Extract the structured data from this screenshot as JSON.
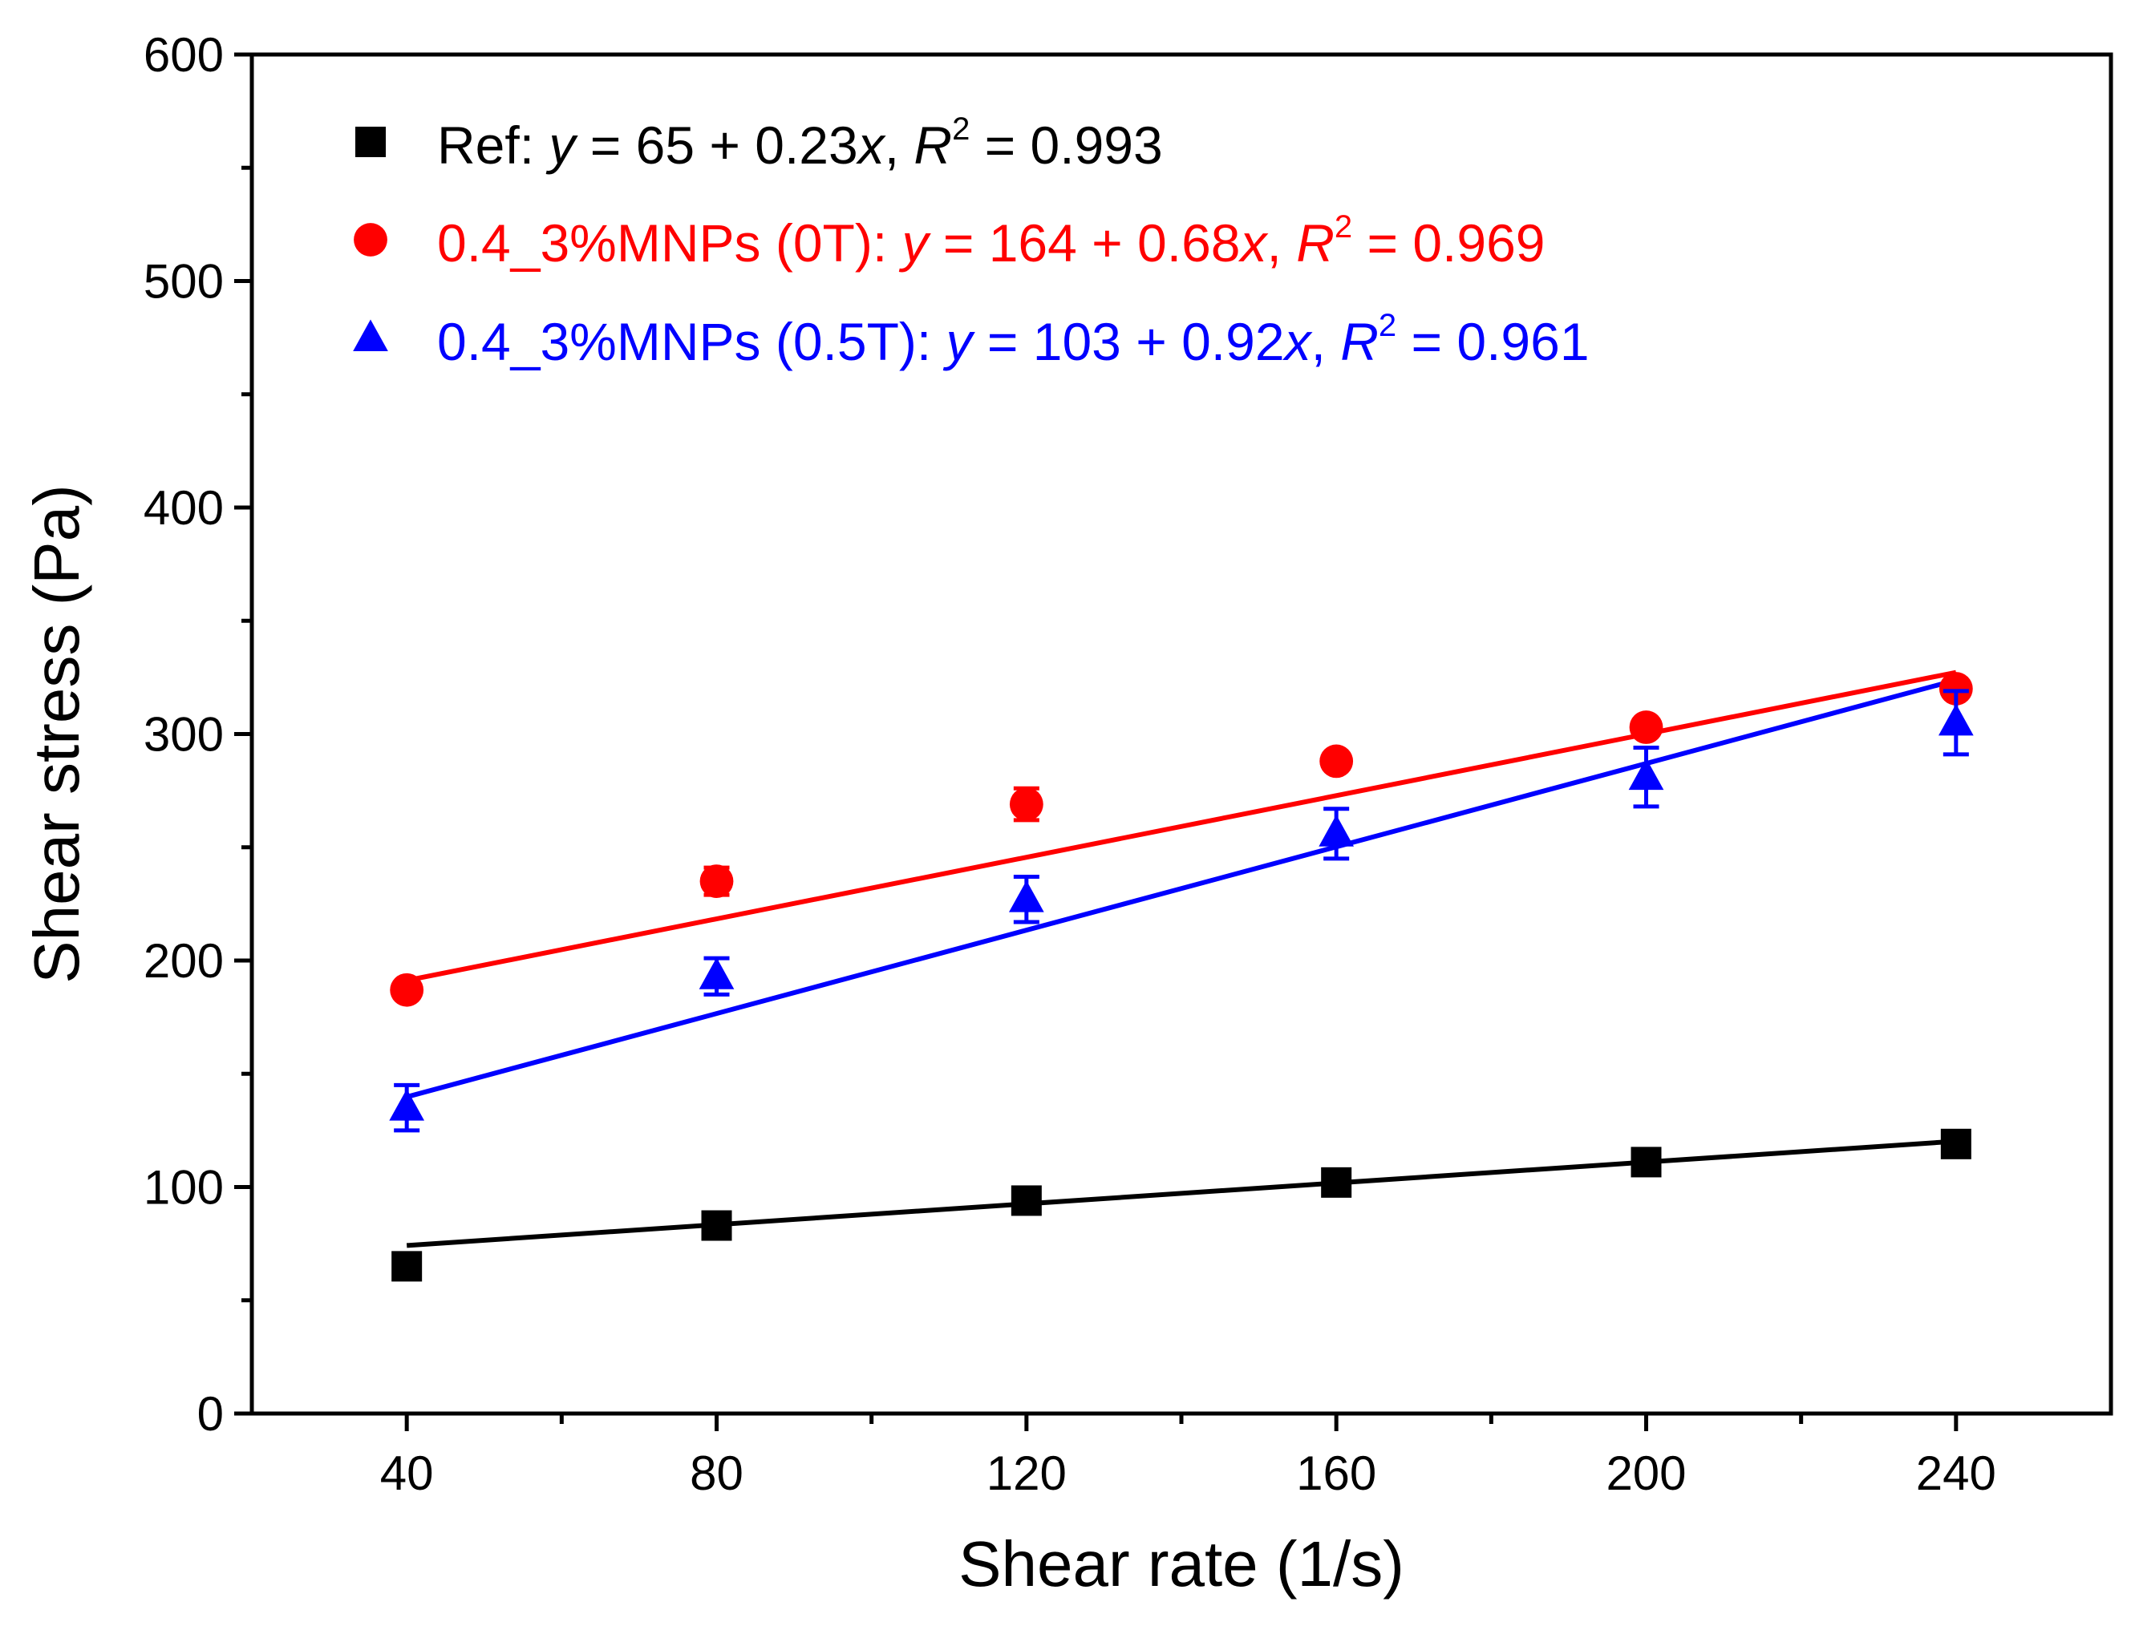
{
  "chart_data": {
    "type": "scatter",
    "title": "",
    "xlabel": "Shear rate (1/s)",
    "ylabel": "Shear stress (Pa)",
    "xlim": [
      20,
      260
    ],
    "ylim": [
      0,
      600
    ],
    "xticks": [
      40,
      80,
      120,
      160,
      200,
      240
    ],
    "yticks": [
      0,
      100,
      200,
      300,
      400,
      500,
      600
    ],
    "grid": false,
    "legend_position": "top-left",
    "series": [
      {
        "name": "Ref",
        "color": "#000000",
        "marker": "square",
        "x": [
          40,
          80,
          120,
          160,
          200,
          240
        ],
        "y": [
          65,
          83,
          94,
          102,
          111,
          119
        ],
        "error": [
          4,
          3,
          3,
          3,
          3,
          3
        ],
        "fit": {
          "intercept": 65,
          "slope": 0.23,
          "r2": "0.993"
        },
        "legend": {
          "label": "Ref: ",
          "eq_y": "y",
          "eq_mid": " = 65 + 0.23",
          "eq_x": "x",
          "eq_comma": ", ",
          "r": "R",
          "r_sup": "2",
          "r_val": " = 0.993"
        }
      },
      {
        "name": "0.4_3%MNPs (0T)",
        "color": "#ff0000",
        "marker": "circle",
        "x": [
          40,
          80,
          120,
          160,
          200,
          240
        ],
        "y": [
          187,
          235,
          269,
          288,
          303,
          320
        ],
        "error": [
          3,
          6,
          7,
          3,
          3,
          3
        ],
        "fit": {
          "intercept": 164,
          "slope": 0.68,
          "r2": "0.969"
        },
        "legend": {
          "label": "0.4_3%MNPs (0T): ",
          "eq_y": "y",
          "eq_mid": " = 164 + 0.68",
          "eq_x": "x",
          "eq_comma": ", ",
          "r": "R",
          "r_sup": "2",
          "r_val": " = 0.969"
        }
      },
      {
        "name": "0.4_3%MNPs (0.5T)",
        "color": "#0000ff",
        "marker": "triangle",
        "x": [
          40,
          80,
          120,
          160,
          200,
          240
        ],
        "y": [
          135,
          193,
          227,
          256,
          281,
          305
        ],
        "error": [
          10,
          8,
          10,
          11,
          13,
          14
        ],
        "fit": {
          "intercept": 103,
          "slope": 0.92,
          "r2": "0.961"
        },
        "legend": {
          "label": "0.4_3%MNPs (0.5T): ",
          "eq_y": "y",
          "eq_mid": " = 103 + 0.92",
          "eq_x": "x",
          "eq_comma": ", ",
          "r": "R",
          "r_sup": "2",
          "r_val": " = 0.961"
        }
      }
    ]
  }
}
